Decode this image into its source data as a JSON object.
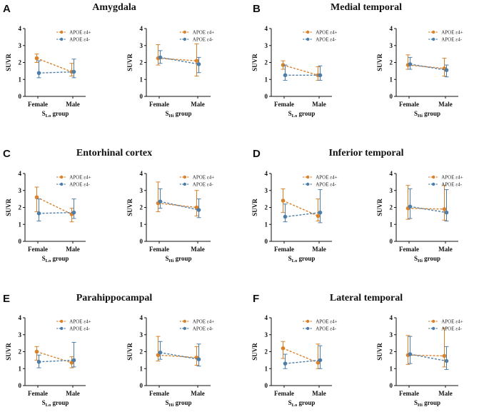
{
  "colors": {
    "pos": "#D9822B",
    "neg": "#4E7EA8",
    "axis": "#111111"
  },
  "legend": {
    "pos": "APOE ε4+",
    "neg": "APOE ε4-",
    "placement": "top-right"
  },
  "common": {
    "ylabel": "SUVR",
    "xlo_prefix": "S",
    "xlo_sub": "Lo",
    "xhi_prefix": "S",
    "xhi_sub": "Hi",
    "xsuffix": " group"
  },
  "panels": [
    {
      "letter": "A",
      "title": "Amygdala"
    },
    {
      "letter": "B",
      "title": "Medial temporal"
    },
    {
      "letter": "C",
      "title": "Entorhinal cortex"
    },
    {
      "letter": "D",
      "title": "Inferior temporal"
    },
    {
      "letter": "E",
      "title": "Parahippocampal"
    },
    {
      "letter": "F",
      "title": "Lateral temporal"
    }
  ],
  "chart_data": [
    {
      "type": "line",
      "panel": "A",
      "region": "Amygdala",
      "group": "SLo",
      "categories": [
        "Female",
        "Male"
      ],
      "ylim": [
        0,
        4
      ],
      "yticks": [
        0,
        1,
        2,
        3,
        4
      ],
      "xlabel": "SLo group",
      "ylabel": "SUVR",
      "series": [
        {
          "name": "APOE ε4+",
          "values": [
            2.25,
            1.45
          ],
          "err_low": [
            2.0,
            1.2
          ],
          "err_high": [
            2.5,
            1.95
          ]
        },
        {
          "name": "APOE ε4-",
          "values": [
            1.38,
            1.45
          ],
          "err_low": [
            1.1,
            1.1
          ],
          "err_high": [
            2.1,
            2.2
          ]
        }
      ]
    },
    {
      "type": "line",
      "panel": "A",
      "region": "Amygdala",
      "group": "SHi",
      "categories": [
        "Female",
        "Male"
      ],
      "ylim": [
        0,
        4
      ],
      "yticks": [
        0,
        1,
        2,
        3,
        4
      ],
      "xlabel": "SHi group",
      "ylabel": "SUVR",
      "series": [
        {
          "name": "APOE ε4+",
          "values": [
            2.25,
            2.1
          ],
          "err_low": [
            1.85,
            1.2
          ],
          "err_high": [
            3.05,
            3.1
          ]
        },
        {
          "name": "APOE ε4-",
          "values": [
            2.3,
            1.9
          ],
          "err_low": [
            1.95,
            1.4
          ],
          "err_high": [
            2.7,
            2.3
          ]
        }
      ]
    },
    {
      "type": "line",
      "panel": "B",
      "region": "Medial temporal",
      "group": "SLo",
      "categories": [
        "Female",
        "Male"
      ],
      "ylim": [
        0,
        4
      ],
      "yticks": [
        0,
        1,
        2,
        3,
        4
      ],
      "xlabel": "SLo group",
      "ylabel": "SUVR",
      "series": [
        {
          "name": "APOE ε4+",
          "values": [
            1.85,
            1.25
          ],
          "err_low": [
            1.6,
            0.95
          ],
          "err_high": [
            2.1,
            1.75
          ]
        },
        {
          "name": "APOE ε4-",
          "values": [
            1.25,
            1.25
          ],
          "err_low": [
            0.95,
            0.95
          ],
          "err_high": [
            1.85,
            1.8
          ]
        }
      ]
    },
    {
      "type": "line",
      "panel": "B",
      "region": "Medial temporal",
      "group": "SHi",
      "categories": [
        "Female",
        "Male"
      ],
      "ylim": [
        0,
        4
      ],
      "yticks": [
        0,
        1,
        2,
        3,
        4
      ],
      "xlabel": "SHi group",
      "ylabel": "SUVR",
      "series": [
        {
          "name": "APOE ε4+",
          "values": [
            1.85,
            1.65
          ],
          "err_low": [
            1.6,
            1.2
          ],
          "err_high": [
            2.45,
            2.25
          ]
        },
        {
          "name": "APOE ε4-",
          "values": [
            1.9,
            1.55
          ],
          "err_low": [
            1.6,
            1.15
          ],
          "err_high": [
            2.3,
            1.85
          ]
        }
      ]
    },
    {
      "type": "line",
      "panel": "C",
      "region": "Entorhinal cortex",
      "group": "SLo",
      "categories": [
        "Female",
        "Male"
      ],
      "ylim": [
        0,
        4
      ],
      "yticks": [
        0,
        1,
        2,
        3,
        4
      ],
      "xlabel": "SLo group",
      "ylabel": "SUVR",
      "series": [
        {
          "name": "APOE ε4+",
          "values": [
            2.6,
            1.6
          ],
          "err_low": [
            1.75,
            1.15
          ],
          "err_high": [
            3.2,
            1.95
          ]
        },
        {
          "name": "APOE ε4-",
          "values": [
            1.65,
            1.7
          ],
          "err_low": [
            1.2,
            1.35
          ],
          "err_high": [
            2.5,
            2.5
          ]
        }
      ]
    },
    {
      "type": "line",
      "panel": "C",
      "region": "Entorhinal cortex",
      "group": "SHi",
      "categories": [
        "Female",
        "Male"
      ],
      "ylim": [
        0,
        4
      ],
      "yticks": [
        0,
        1,
        2,
        3,
        4
      ],
      "xlabel": "SHi group",
      "ylabel": "SUVR",
      "series": [
        {
          "name": "APOE ε4+",
          "values": [
            2.25,
            2.0
          ],
          "err_low": [
            1.75,
            1.5
          ],
          "err_high": [
            3.5,
            3.0
          ]
        },
        {
          "name": "APOE ε4-",
          "values": [
            2.35,
            1.85
          ],
          "err_low": [
            1.95,
            1.4
          ],
          "err_high": [
            3.1,
            2.5
          ]
        }
      ]
    },
    {
      "type": "line",
      "panel": "D",
      "region": "Inferior temporal",
      "group": "SLo",
      "categories": [
        "Female",
        "Male"
      ],
      "ylim": [
        0,
        4
      ],
      "yticks": [
        0,
        1,
        2,
        3,
        4
      ],
      "xlabel": "SLo group",
      "ylabel": "SUVR",
      "series": [
        {
          "name": "APOE ε4+",
          "values": [
            2.4,
            1.5
          ],
          "err_low": [
            1.7,
            1.2
          ],
          "err_high": [
            3.1,
            2.5
          ]
        },
        {
          "name": "APOE ε4-",
          "values": [
            1.45,
            1.7
          ],
          "err_low": [
            1.15,
            1.1
          ],
          "err_high": [
            2.2,
            3.05
          ]
        }
      ]
    },
    {
      "type": "line",
      "panel": "D",
      "region": "Inferior temporal",
      "group": "SHi",
      "categories": [
        "Female",
        "Male"
      ],
      "ylim": [
        0,
        4
      ],
      "yticks": [
        0,
        1,
        2,
        3,
        4
      ],
      "xlabel": "SHi group",
      "ylabel": "SUVR",
      "series": [
        {
          "name": "APOE ε4+",
          "values": [
            1.95,
            1.9
          ],
          "err_low": [
            1.3,
            1.25
          ],
          "err_high": [
            3.3,
            3.3
          ]
        },
        {
          "name": "APOE ε4-",
          "values": [
            2.05,
            1.7
          ],
          "err_low": [
            1.35,
            1.2
          ],
          "err_high": [
            3.1,
            3.05
          ]
        }
      ]
    },
    {
      "type": "line",
      "panel": "E",
      "region": "Parahippocampal",
      "group": "SLo",
      "categories": [
        "Female",
        "Male"
      ],
      "ylim": [
        0,
        4
      ],
      "yticks": [
        0,
        1,
        2,
        3,
        4
      ],
      "xlabel": "SLo group",
      "ylabel": "SUVR",
      "series": [
        {
          "name": "APOE ε4+",
          "values": [
            2.0,
            1.35
          ],
          "err_low": [
            1.5,
            1.05
          ],
          "err_high": [
            2.3,
            1.7
          ]
        },
        {
          "name": "APOE ε4-",
          "values": [
            1.4,
            1.5
          ],
          "err_low": [
            1.05,
            1.1
          ],
          "err_high": [
            1.8,
            2.55
          ]
        }
      ]
    },
    {
      "type": "line",
      "panel": "E",
      "region": "Parahippocampal",
      "group": "SHi",
      "categories": [
        "Female",
        "Male"
      ],
      "ylim": [
        0,
        4
      ],
      "yticks": [
        0,
        1,
        2,
        3,
        4
      ],
      "xlabel": "SHi group",
      "ylabel": "SUVR",
      "series": [
        {
          "name": "APOE ε4+",
          "values": [
            1.8,
            1.65
          ],
          "err_low": [
            1.45,
            1.2
          ],
          "err_high": [
            2.9,
            2.3
          ]
        },
        {
          "name": "APOE ε4-",
          "values": [
            1.95,
            1.55
          ],
          "err_low": [
            1.55,
            1.15
          ],
          "err_high": [
            2.6,
            2.45
          ]
        }
      ]
    },
    {
      "type": "line",
      "panel": "F",
      "region": "Lateral temporal",
      "group": "SLo",
      "categories": [
        "Female",
        "Male"
      ],
      "ylim": [
        0,
        4
      ],
      "yticks": [
        0,
        1,
        2,
        3,
        4
      ],
      "xlabel": "SLo group",
      "ylabel": "SUVR",
      "series": [
        {
          "name": "APOE ε4+",
          "values": [
            2.2,
            1.35
          ],
          "err_low": [
            1.6,
            1.0
          ],
          "err_high": [
            2.6,
            2.45
          ]
        },
        {
          "name": "APOE ε4-",
          "values": [
            1.3,
            1.5
          ],
          "err_low": [
            1.0,
            1.0
          ],
          "err_high": [
            1.85,
            2.35
          ]
        }
      ]
    },
    {
      "type": "line",
      "panel": "F",
      "region": "Lateral temporal",
      "group": "SHi",
      "categories": [
        "Female",
        "Male"
      ],
      "ylim": [
        0,
        4
      ],
      "yticks": [
        0,
        1,
        2,
        3,
        4
      ],
      "xlabel": "SHi group",
      "ylabel": "SUVR",
      "series": [
        {
          "name": "APOE ε4+",
          "values": [
            1.8,
            1.75
          ],
          "err_low": [
            1.25,
            1.1
          ],
          "err_high": [
            2.95,
            3.4
          ]
        },
        {
          "name": "APOE ε4-",
          "values": [
            1.85,
            1.45
          ],
          "err_low": [
            1.3,
            0.95
          ],
          "err_high": [
            2.9,
            2.3
          ]
        }
      ]
    }
  ]
}
